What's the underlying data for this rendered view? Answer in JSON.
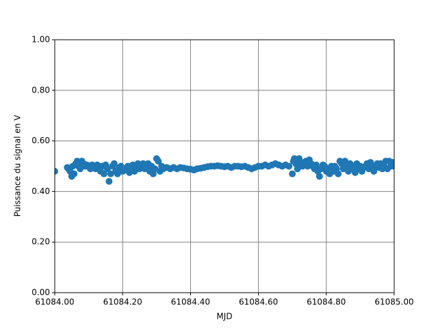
{
  "chart_data": {
    "type": "scatter",
    "x_label": "MJD",
    "y_label": "Puissance du signal en V",
    "xlim": [
      61084.0,
      61085.0
    ],
    "ylim": [
      0,
      1
    ],
    "xticks": [
      {
        "value": 61084.0,
        "label": "61084.00"
      },
      {
        "value": 61084.2,
        "label": "61084.20"
      },
      {
        "value": 61084.4,
        "label": "61084.40"
      },
      {
        "value": 61084.6,
        "label": "61084.60"
      },
      {
        "value": 61084.8,
        "label": "61084.80"
      },
      {
        "value": 61085.0,
        "label": "61085.00"
      }
    ],
    "yticks": [
      {
        "value": 0,
        "label": "0.00"
      },
      {
        "value": 0.2,
        "label": "0.20"
      },
      {
        "value": 0.4,
        "label": "0.40"
      },
      {
        "value": 0.6,
        "label": "0.60"
      },
      {
        "value": 0.8,
        "label": "0.80"
      },
      {
        "value": 1,
        "label": "1.00"
      }
    ],
    "grid": true,
    "color": "#1f77b4",
    "x": [
      61084.0,
      61084.037,
      61084.04,
      61084.045,
      61084.05,
      61084.053,
      61084.057,
      61084.062,
      61084.066,
      61084.07,
      61084.075,
      61084.08,
      61084.085,
      61084.09,
      61084.095,
      61084.1,
      61084.105,
      61084.11,
      61084.115,
      61084.12,
      61084.125,
      61084.13,
      61084.135,
      61084.14,
      61084.145,
      61084.15,
      61084.155,
      61084.16,
      61084.165,
      61084.17,
      61084.175,
      61084.18,
      61084.185,
      61084.19,
      61084.195,
      61084.2,
      61084.205,
      61084.21,
      61084.215,
      61084.22,
      61084.225,
      61084.23,
      61084.235,
      61084.24,
      61084.245,
      61084.25,
      61084.255,
      61084.26,
      61084.265,
      61084.27,
      61084.275,
      61084.28,
      61084.285,
      61084.29,
      61084.295,
      61084.3,
      61084.305,
      61084.31,
      61084.315,
      61084.32,
      61084.33,
      61084.34,
      61084.35,
      61084.36,
      61084.37,
      61084.38,
      61084.39,
      61084.4,
      61084.41,
      61084.42,
      61084.43,
      61084.44,
      61084.45,
      61084.46,
      61084.47,
      61084.48,
      61084.49,
      61084.5,
      61084.51,
      61084.52,
      61084.53,
      61084.54,
      61084.55,
      61084.56,
      61084.57,
      61084.58,
      61084.59,
      61084.6,
      61084.61,
      61084.62,
      61084.63,
      61084.64,
      61084.65,
      61084.66,
      61084.67,
      61084.68,
      61084.69,
      61084.7,
      61084.703,
      61084.706,
      61084.71,
      61084.715,
      61084.72,
      61084.725,
      61084.73,
      61084.735,
      61084.74,
      61084.745,
      61084.75,
      61084.755,
      61084.76,
      61084.765,
      61084.77,
      61084.775,
      61084.78,
      61084.785,
      61084.79,
      61084.795,
      61084.8,
      61084.805,
      61084.81,
      61084.815,
      61084.82,
      61084.825,
      61084.83,
      61084.835,
      61084.84,
      61084.845,
      61084.85,
      61084.855,
      61084.86,
      61084.865,
      61084.87,
      61084.875,
      61084.88,
      61084.885,
      61084.89,
      61084.895,
      61084.9,
      61084.905,
      61084.91,
      61084.915,
      61084.92,
      61084.925,
      61084.93,
      61084.935,
      61084.94,
      61084.945,
      61084.95,
      61084.955,
      61084.96,
      61084.965,
      61084.97,
      61084.975,
      61084.98,
      61084.985,
      61084.99,
      61084.995,
      61085.0
    ],
    "values": [
      0.48,
      0.495,
      0.49,
      0.48,
      0.46,
      0.5,
      0.47,
      0.51,
      0.52,
      0.5,
      0.49,
      0.52,
      0.51,
      0.5,
      0.505,
      0.5,
      0.49,
      0.505,
      0.5,
      0.49,
      0.505,
      0.5,
      0.48,
      0.5,
      0.47,
      0.505,
      0.49,
      0.44,
      0.47,
      0.5,
      0.51,
      0.48,
      0.47,
      0.495,
      0.5,
      0.48,
      0.49,
      0.485,
      0.5,
      0.475,
      0.49,
      0.505,
      0.48,
      0.5,
      0.51,
      0.49,
      0.5,
      0.51,
      0.49,
      0.5,
      0.51,
      0.48,
      0.5,
      0.47,
      0.49,
      0.53,
      0.52,
      0.48,
      0.5,
      0.49,
      0.495,
      0.49,
      0.495,
      0.49,
      0.495,
      0.493,
      0.49,
      0.488,
      0.485,
      0.49,
      0.492,
      0.495,
      0.498,
      0.5,
      0.5,
      0.502,
      0.5,
      0.498,
      0.5,
      0.495,
      0.5,
      0.5,
      0.498,
      0.5,
      0.495,
      0.49,
      0.495,
      0.5,
      0.5,
      0.505,
      0.5,
      0.505,
      0.51,
      0.505,
      0.5,
      0.505,
      0.5,
      0.47,
      0.52,
      0.53,
      0.51,
      0.49,
      0.53,
      0.51,
      0.5,
      0.515,
      0.52,
      0.5,
      0.525,
      0.51,
      0.5,
      0.49,
      0.505,
      0.48,
      0.46,
      0.49,
      0.505,
      0.5,
      0.48,
      0.49,
      0.47,
      0.5,
      0.48,
      0.5,
      0.49,
      0.47,
      0.52,
      0.51,
      0.49,
      0.52,
      0.5,
      0.48,
      0.51,
      0.49,
      0.5,
      0.475,
      0.51,
      0.49,
      0.5,
      0.48,
      0.495,
      0.5,
      0.51,
      0.49,
      0.515,
      0.5,
      0.48,
      0.5,
      0.51,
      0.495,
      0.51,
      0.49,
      0.5,
      0.52,
      0.49,
      0.52,
      0.5,
      0.515,
      0.5
    ]
  }
}
